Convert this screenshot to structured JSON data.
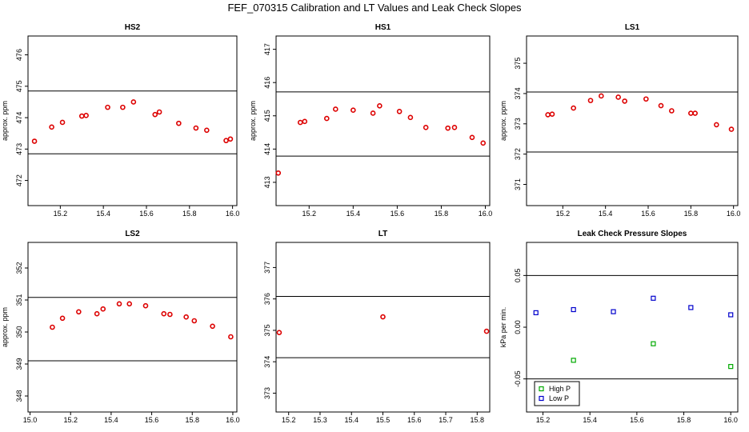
{
  "title": "FEF_070315  Calibration and LT Values and Leak Check Slopes",
  "chart_data": [
    {
      "type": "scatter",
      "title": "HS2",
      "ylabel": "approx. ppm",
      "xlim": [
        15.05,
        16.02
      ],
      "ylim": [
        471.2,
        476.6
      ],
      "xticks": [
        15.2,
        15.4,
        15.6,
        15.8,
        16.0
      ],
      "xtick_labels": [
        "15.2",
        "15.4",
        "15.6",
        "15.8",
        "16.0"
      ],
      "yticks": [
        472,
        473,
        474,
        475,
        476
      ],
      "ytick_labels": [
        "472",
        "473",
        "474",
        "475",
        "476"
      ],
      "hlines": [
        474.85,
        472.85
      ],
      "series": [
        {
          "color": "#dd0000",
          "marker": "circle",
          "x": [
            15.08,
            15.16,
            15.21,
            15.3,
            15.32,
            15.42,
            15.49,
            15.54,
            15.64,
            15.66,
            15.75,
            15.83,
            15.88,
            15.97,
            15.99
          ],
          "y": [
            473.25,
            473.7,
            473.85,
            474.05,
            474.07,
            474.33,
            474.33,
            474.5,
            474.1,
            474.18,
            473.82,
            473.67,
            473.6,
            473.27,
            473.32
          ]
        }
      ]
    },
    {
      "type": "scatter",
      "title": "HS1",
      "ylabel": "approx. ppm",
      "xlim": [
        15.05,
        16.02
      ],
      "ylim": [
        412.3,
        417.4
      ],
      "xticks": [
        15.2,
        15.4,
        15.6,
        15.8,
        16.0
      ],
      "xtick_labels": [
        "15.2",
        "15.4",
        "15.6",
        "15.8",
        "16.0"
      ],
      "yticks": [
        413,
        414,
        415,
        416,
        417
      ],
      "ytick_labels": [
        "413",
        "414",
        "415",
        "416",
        "417"
      ],
      "hlines": [
        415.72,
        413.79
      ],
      "series": [
        {
          "color": "#dd0000",
          "marker": "circle",
          "x": [
            15.06,
            15.16,
            15.18,
            15.28,
            15.32,
            15.4,
            15.49,
            15.52,
            15.61,
            15.66,
            15.73,
            15.83,
            15.86,
            15.94,
            15.99
          ],
          "y": [
            413.28,
            414.8,
            414.83,
            414.92,
            415.2,
            415.17,
            415.08,
            415.3,
            415.13,
            414.95,
            414.65,
            414.63,
            414.65,
            414.35,
            414.18
          ]
        }
      ]
    },
    {
      "type": "scatter",
      "title": "LS1",
      "ylabel": "approx. ppm",
      "xlim": [
        15.03,
        16.02
      ],
      "ylim": [
        370.3,
        375.9
      ],
      "xticks": [
        15.2,
        15.4,
        15.6,
        15.8,
        16.0
      ],
      "xtick_labels": [
        "15.2",
        "15.4",
        "15.6",
        "15.8",
        "16.0"
      ],
      "yticks": [
        371,
        372,
        373,
        374,
        375
      ],
      "ytick_labels": [
        "371",
        "372",
        "373",
        "374",
        "375"
      ],
      "hlines": [
        374.05,
        372.07
      ],
      "series": [
        {
          "color": "#dd0000",
          "marker": "circle",
          "x": [
            15.13,
            15.15,
            15.25,
            15.33,
            15.38,
            15.46,
            15.49,
            15.59,
            15.66,
            15.71,
            15.8,
            15.82,
            15.92,
            15.99
          ],
          "y": [
            373.3,
            373.32,
            373.52,
            373.77,
            373.92,
            373.88,
            373.75,
            373.82,
            373.6,
            373.43,
            373.35,
            373.35,
            372.97,
            372.82
          ]
        }
      ]
    },
    {
      "type": "scatter",
      "title": "LS2",
      "ylabel": "approx. ppm",
      "xlim": [
        14.99,
        16.02
      ],
      "ylim": [
        347.5,
        352.8
      ],
      "xticks": [
        15.0,
        15.2,
        15.4,
        15.6,
        15.8,
        16.0
      ],
      "xtick_labels": [
        "15.0",
        "15.2",
        "15.4",
        "15.6",
        "15.8",
        "16.0"
      ],
      "yticks": [
        348,
        349,
        350,
        351,
        352
      ],
      "ytick_labels": [
        "348",
        "349",
        "350",
        "351",
        "352"
      ],
      "hlines": [
        351.08,
        349.1
      ],
      "series": [
        {
          "color": "#dd0000",
          "marker": "circle",
          "x": [
            15.11,
            15.16,
            15.24,
            15.33,
            15.36,
            15.44,
            15.49,
            15.57,
            15.66,
            15.69,
            15.77,
            15.81,
            15.9,
            15.99
          ],
          "y": [
            350.15,
            350.43,
            350.63,
            350.57,
            350.72,
            350.88,
            350.88,
            350.82,
            350.57,
            350.55,
            350.47,
            350.35,
            350.18,
            349.85
          ]
        }
      ]
    },
    {
      "type": "scatter",
      "title": "LT",
      "ylabel": "",
      "xlim": [
        15.16,
        15.84
      ],
      "ylim": [
        372.4,
        377.8
      ],
      "xticks": [
        15.2,
        15.3,
        15.4,
        15.5,
        15.6,
        15.7,
        15.8
      ],
      "xtick_labels": [
        "15.2",
        "15.3",
        "15.4",
        "15.5",
        "15.6",
        "15.7",
        "15.8"
      ],
      "yticks": [
        373,
        374,
        375,
        376,
        377
      ],
      "ytick_labels": [
        "373",
        "374",
        "375",
        "376",
        "377"
      ],
      "hlines": [
        376.08,
        374.13
      ],
      "series": [
        {
          "color": "#dd0000",
          "marker": "circle",
          "x": [
            15.17,
            15.5,
            15.83
          ],
          "y": [
            374.93,
            375.43,
            374.97
          ]
        }
      ]
    },
    {
      "type": "scatter",
      "title": "Leak Check Pressure Slopes",
      "ylabel": "kPa per min.",
      "xlim": [
        15.13,
        16.03
      ],
      "ylim": [
        -0.082,
        0.082
      ],
      "xticks": [
        15.2,
        15.4,
        15.6,
        15.8,
        16.0
      ],
      "xtick_labels": [
        "15.2",
        "15.4",
        "15.6",
        "15.8",
        "16.0"
      ],
      "yticks": [
        -0.05,
        0.0,
        0.05
      ],
      "ytick_labels": [
        "-0.05",
        "0.00",
        "0.05"
      ],
      "hlines": [
        0.05,
        -0.05
      ],
      "legend": {
        "position": "bottom-left",
        "entries": [
          {
            "label": "High P",
            "color": "#00aa00"
          },
          {
            "label": "Low P",
            "color": "#0000cc"
          }
        ]
      },
      "series": [
        {
          "name": "High P",
          "color": "#00aa00",
          "marker": "square",
          "x": [
            15.33,
            15.67,
            16.0
          ],
          "y": [
            -0.032,
            -0.016,
            -0.038
          ]
        },
        {
          "name": "Low P",
          "color": "#0000cc",
          "marker": "square",
          "x": [
            15.17,
            15.33,
            15.5,
            15.67,
            15.83,
            16.0
          ],
          "y": [
            0.014,
            0.017,
            0.015,
            0.028,
            0.019,
            0.012
          ]
        }
      ]
    }
  ]
}
